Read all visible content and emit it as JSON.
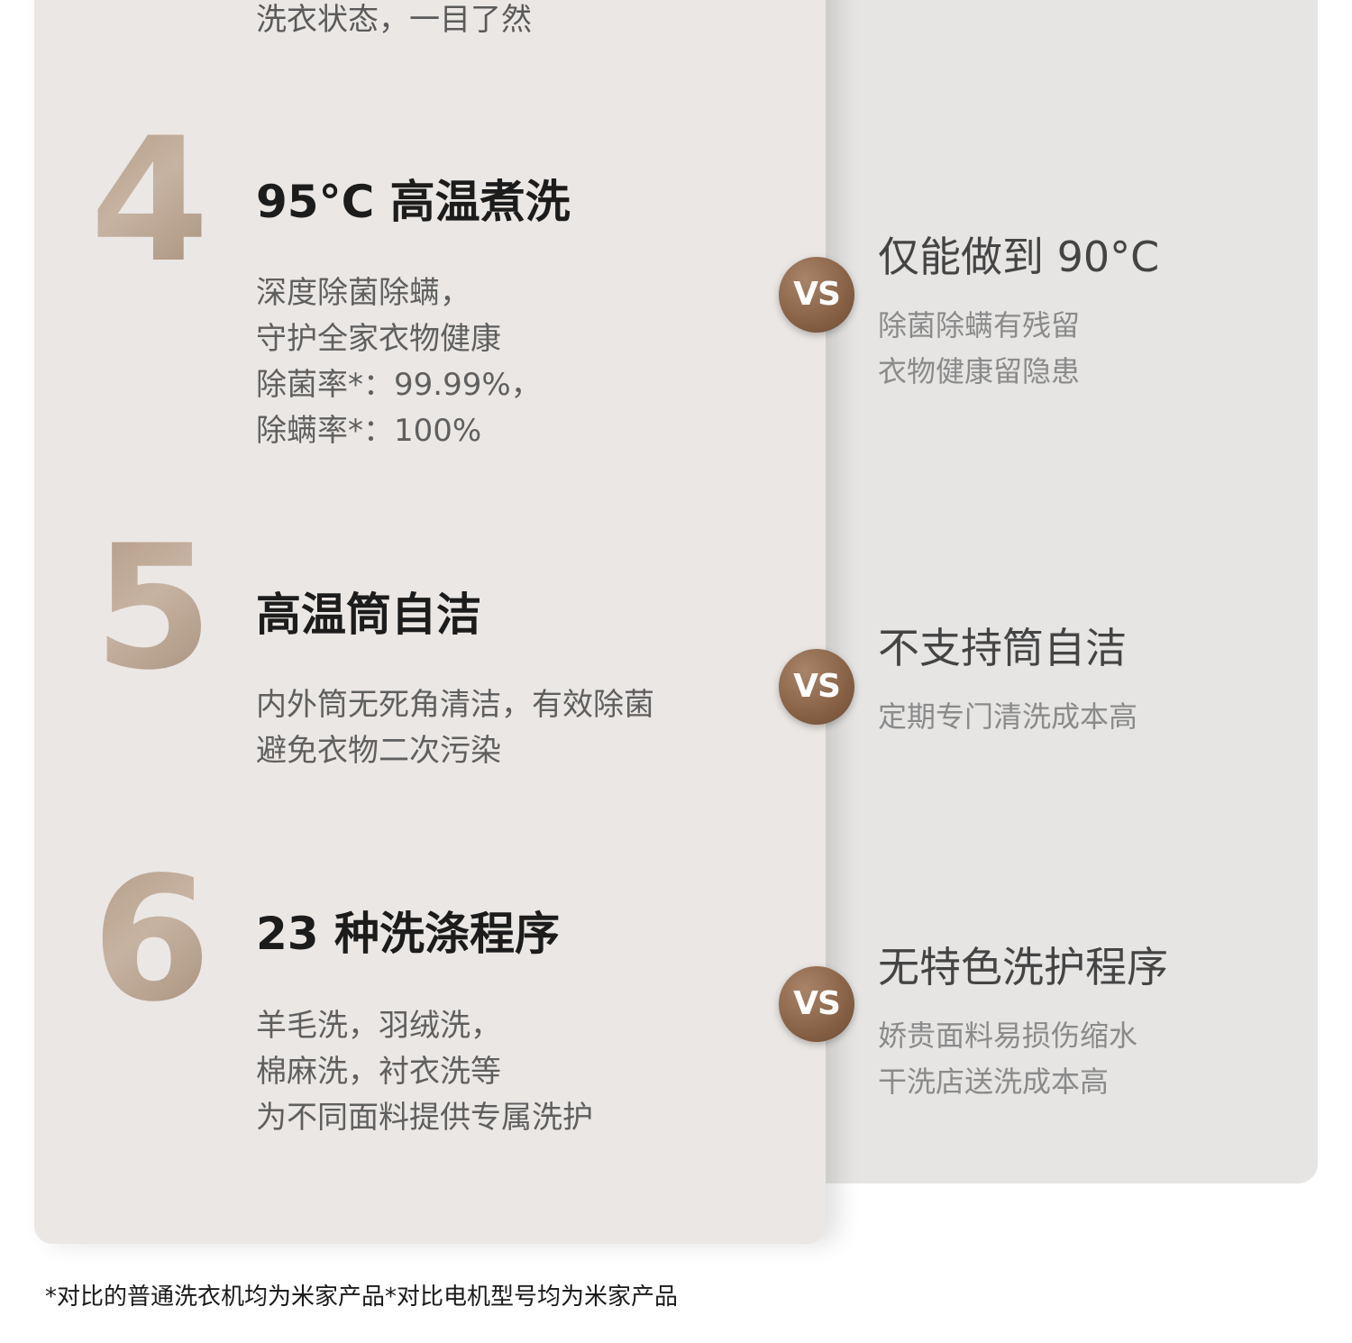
{
  "top_text": "洗衣状态，一目了然",
  "features": [
    {
      "number": "4",
      "title": "95°C 高温煮洗",
      "desc": [
        "深度除菌除螨，",
        "守护全家衣物健康",
        "除菌率*：99.99%，",
        "除螨率*：100%"
      ],
      "vs": "VS",
      "compare_title": "仅能做到 90°C",
      "compare_desc": [
        "除菌除螨有残留",
        "衣物健康留隐患"
      ]
    },
    {
      "number": "5",
      "title": "高温筒自洁",
      "desc": [
        "内外筒无死角清洁，有效除菌",
        "避免衣物二次污染"
      ],
      "vs": "VS",
      "compare_title": "不支持筒自洁",
      "compare_desc": [
        "定期专门清洗成本高"
      ]
    },
    {
      "number": "6",
      "title": "23 种洗涤程序",
      "desc": [
        "羊毛洗，羽绒洗，",
        "棉麻洗，衬衣洗等",
        "为不同面料提供专属洗护"
      ],
      "vs": "VS",
      "compare_title": "无特色洗护程序",
      "compare_desc": [
        "娇贵面料易损伤缩水",
        "干洗店送洗成本高"
      ]
    }
  ],
  "footnote": "*对比的普通洗衣机均为米家产品*对比电机型号均为米家产品",
  "colors": {
    "left_panel": "#ebe7e4",
    "right_panel": "#e6e5e4",
    "vs_badge": "#8a6448",
    "number_gradient": "#b29a86"
  }
}
